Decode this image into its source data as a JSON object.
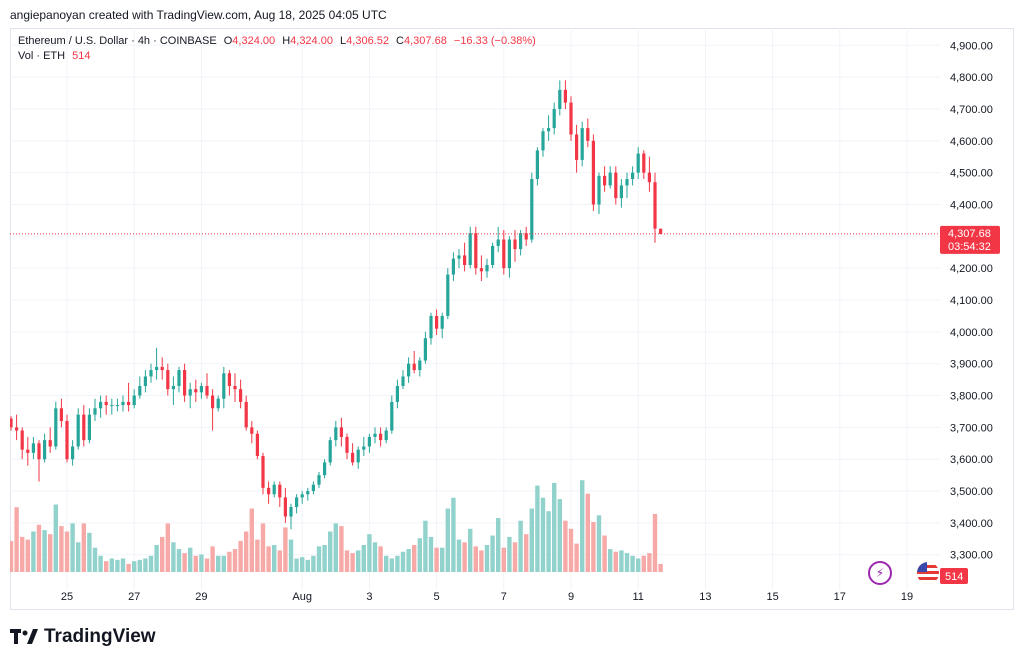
{
  "header": {
    "credit": "angiepanoyan created with TradingView.com, Aug 18, 2025 04:05 UTC"
  },
  "legend": {
    "symbol": "Ethereum / U.S. Dollar · 4h · COINBASE",
    "o_label": "O",
    "o_value": "4,324.00",
    "h_label": "H",
    "h_value": "4,324.00",
    "l_label": "L",
    "l_value": "4,306.52",
    "c_label": "C",
    "c_value": "4,307.68",
    "change": "−16.33 (−0.38%)",
    "vol_label": "Vol · ETH",
    "vol_value": "514"
  },
  "price_tag": {
    "price": "4,307.68",
    "countdown": "03:54:32"
  },
  "volume_tag": "514",
  "brand": {
    "logo_text": "TradingView"
  },
  "colors": {
    "up": "#26a69a",
    "down": "#f23645",
    "up_vol": "#92d2cc",
    "down_vol": "#f7a9a7",
    "grid": "#f0f3fa"
  },
  "icons": {
    "lightning": "lightning-icon",
    "flag": "us-flag-icon",
    "logo": "tradingview-logo-icon"
  },
  "chart_data": {
    "type": "candlestick",
    "title": "Ethereum / U.S. Dollar · 4h · COINBASE",
    "ylim": [
      3240,
      4960
    ],
    "y_ticks": [
      3300,
      3400,
      3500,
      3600,
      3700,
      3800,
      3900,
      4000,
      4100,
      4200,
      4300,
      4400,
      4500,
      4600,
      4700,
      4800,
      4900
    ],
    "y_tick_labels": [
      "3,300.00",
      "3,400.00",
      "3,500.00",
      "3,600.00",
      "3,700.00",
      "3,800.00",
      "3,900.00",
      "4,000.00",
      "4,100.00",
      "4,200.00",
      "4,300.00",
      "4,400.00",
      "4,500.00",
      "4,600.00",
      "4,700.00",
      "4,800.00",
      "4,900.00"
    ],
    "x_ticks": [
      {
        "label": "25",
        "i": 10
      },
      {
        "label": "27",
        "i": 22
      },
      {
        "label": "29",
        "i": 34
      },
      {
        "label": "Aug",
        "i": 52
      },
      {
        "label": "3",
        "i": 64
      },
      {
        "label": "5",
        "i": 76
      },
      {
        "label": "7",
        "i": 88
      },
      {
        "label": "9",
        "i": 100
      },
      {
        "label": "11",
        "i": 112
      },
      {
        "label": "13",
        "i": 124
      },
      {
        "label": "15",
        "i": 136
      },
      {
        "label": "17",
        "i": 148
      },
      {
        "label": "19",
        "i": 160
      }
    ],
    "last_price": 4307.68,
    "candles": [
      [
        3728,
        3735,
        3690,
        3700,
        0.23
      ],
      [
        3700,
        3740,
        3660,
        3690,
        0.48
      ],
      [
        3690,
        3700,
        3600,
        3630,
        0.26
      ],
      [
        3630,
        3670,
        3580,
        3620,
        0.24
      ],
      [
        3620,
        3670,
        3600,
        3650,
        0.3
      ],
      [
        3650,
        3660,
        3530,
        3600,
        0.35
      ],
      [
        3600,
        3680,
        3590,
        3660,
        0.31
      ],
      [
        3660,
        3700,
        3620,
        3640,
        0.28
      ],
      [
        3640,
        3780,
        3630,
        3760,
        0.5
      ],
      [
        3760,
        3790,
        3700,
        3720,
        0.34
      ],
      [
        3720,
        3740,
        3590,
        3600,
        0.3
      ],
      [
        3600,
        3660,
        3580,
        3640,
        0.36
      ],
      [
        3640,
        3760,
        3630,
        3740,
        0.22
      ],
      [
        3740,
        3770,
        3640,
        3660,
        0.36
      ],
      [
        3660,
        3760,
        3650,
        3740,
        0.29
      ],
      [
        3740,
        3790,
        3720,
        3760,
        0.18
      ],
      [
        3760,
        3800,
        3730,
        3780,
        0.12
      ],
      [
        3780,
        3800,
        3740,
        3770,
        0.08
      ],
      [
        3770,
        3790,
        3740,
        3770,
        0.1
      ],
      [
        3770,
        3790,
        3750,
        3770,
        0.09
      ],
      [
        3770,
        3800,
        3750,
        3780,
        0.1
      ],
      [
        3780,
        3840,
        3750,
        3770,
        0.06
      ],
      [
        3770,
        3820,
        3760,
        3800,
        0.08
      ],
      [
        3800,
        3860,
        3790,
        3830,
        0.09
      ],
      [
        3830,
        3880,
        3810,
        3860,
        0.1
      ],
      [
        3860,
        3900,
        3840,
        3880,
        0.12
      ],
      [
        3880,
        3950,
        3850,
        3890,
        0.2
      ],
      [
        3890,
        3920,
        3850,
        3880,
        0.26
      ],
      [
        3880,
        3900,
        3800,
        3820,
        0.36
      ],
      [
        3820,
        3860,
        3770,
        3830,
        0.22
      ],
      [
        3830,
        3890,
        3810,
        3880,
        0.17
      ],
      [
        3880,
        3900,
        3780,
        3800,
        0.14
      ],
      [
        3800,
        3840,
        3760,
        3820,
        0.18
      ],
      [
        3820,
        3850,
        3780,
        3810,
        0.12
      ],
      [
        3810,
        3840,
        3790,
        3830,
        0.13
      ],
      [
        3830,
        3870,
        3790,
        3800,
        0.1
      ],
      [
        3800,
        3820,
        3690,
        3760,
        0.19
      ],
      [
        3760,
        3800,
        3750,
        3790,
        0.12
      ],
      [
        3790,
        3890,
        3760,
        3870,
        0.12
      ],
      [
        3870,
        3880,
        3800,
        3830,
        0.15
      ],
      [
        3830,
        3870,
        3780,
        3820,
        0.17
      ],
      [
        3820,
        3850,
        3760,
        3780,
        0.23
      ],
      [
        3780,
        3800,
        3690,
        3700,
        0.3
      ],
      [
        3700,
        3720,
        3650,
        3680,
        0.47
      ],
      [
        3680,
        3690,
        3600,
        3610,
        0.24
      ],
      [
        3610,
        3620,
        3490,
        3510,
        0.36
      ],
      [
        3510,
        3530,
        3460,
        3490,
        0.19
      ],
      [
        3490,
        3530,
        3480,
        3520,
        0.2
      ],
      [
        3520,
        3530,
        3450,
        3480,
        0.16
      ],
      [
        3480,
        3510,
        3400,
        3420,
        0.33
      ],
      [
        3420,
        3460,
        3380,
        3450,
        0.24
      ],
      [
        3450,
        3490,
        3430,
        3480,
        0.1
      ],
      [
        3480,
        3500,
        3460,
        3490,
        0.11
      ],
      [
        3490,
        3510,
        3470,
        3500,
        0.09
      ],
      [
        3500,
        3530,
        3490,
        3520,
        0.12
      ],
      [
        3520,
        3560,
        3510,
        3550,
        0.19
      ],
      [
        3550,
        3600,
        3540,
        3590,
        0.2
      ],
      [
        3590,
        3670,
        3580,
        3660,
        0.3
      ],
      [
        3660,
        3720,
        3640,
        3700,
        0.36
      ],
      [
        3700,
        3730,
        3640,
        3670,
        0.34
      ],
      [
        3670,
        3680,
        3600,
        3620,
        0.16
      ],
      [
        3620,
        3650,
        3580,
        3590,
        0.14
      ],
      [
        3590,
        3640,
        3570,
        3630,
        0.16
      ],
      [
        3630,
        3670,
        3610,
        3640,
        0.2
      ],
      [
        3640,
        3680,
        3620,
        3670,
        0.28
      ],
      [
        3670,
        3700,
        3650,
        3680,
        0.22
      ],
      [
        3680,
        3700,
        3640,
        3660,
        0.19
      ],
      [
        3660,
        3700,
        3650,
        3690,
        0.12
      ],
      [
        3690,
        3800,
        3680,
        3780,
        0.1
      ],
      [
        3780,
        3850,
        3760,
        3830,
        0.12
      ],
      [
        3830,
        3880,
        3820,
        3860,
        0.15
      ],
      [
        3860,
        3920,
        3840,
        3900,
        0.17
      ],
      [
        3900,
        3940,
        3870,
        3880,
        0.2
      ],
      [
        3880,
        3920,
        3860,
        3910,
        0.25
      ],
      [
        3910,
        4000,
        3900,
        3980,
        0.38
      ],
      [
        3980,
        4060,
        3960,
        4050,
        0.26
      ],
      [
        4050,
        4070,
        3990,
        4010,
        0.18
      ],
      [
        4010,
        4060,
        3980,
        4050,
        0.18
      ],
      [
        4050,
        4200,
        4040,
        4180,
        0.47
      ],
      [
        4180,
        4250,
        4160,
        4230,
        0.55
      ],
      [
        4230,
        4260,
        4200,
        4240,
        0.24
      ],
      [
        4240,
        4280,
        4190,
        4210,
        0.22
      ],
      [
        4210,
        4330,
        4200,
        4310,
        0.32
      ],
      [
        4310,
        4330,
        4180,
        4200,
        0.19
      ],
      [
        4200,
        4240,
        4160,
        4190,
        0.16
      ],
      [
        4190,
        4230,
        4170,
        4210,
        0.2
      ],
      [
        4210,
        4280,
        4200,
        4270,
        0.27
      ],
      [
        4270,
        4330,
        4250,
        4290,
        0.4
      ],
      [
        4290,
        4320,
        4180,
        4200,
        0.18
      ],
      [
        4200,
        4300,
        4170,
        4290,
        0.26
      ],
      [
        4290,
        4320,
        4220,
        4260,
        0.22
      ],
      [
        4260,
        4320,
        4240,
        4310,
        0.38
      ],
      [
        4310,
        4330,
        4270,
        4290,
        0.28
      ],
      [
        4290,
        4500,
        4280,
        4480,
        0.47
      ],
      [
        4480,
        4580,
        4460,
        4570,
        0.64
      ],
      [
        4570,
        4640,
        4550,
        4630,
        0.55
      ],
      [
        4630,
        4680,
        4600,
        4640,
        0.45
      ],
      [
        4640,
        4720,
        4620,
        4700,
        0.66
      ],
      [
        4700,
        4790,
        4680,
        4760,
        0.54
      ],
      [
        4760,
        4790,
        4700,
        4720,
        0.38
      ],
      [
        4720,
        4740,
        4600,
        4620,
        0.32
      ],
      [
        4620,
        4650,
        4500,
        4540,
        0.21
      ],
      [
        4540,
        4660,
        4520,
        4640,
        0.68
      ],
      [
        4640,
        4670,
        4580,
        4600,
        0.58
      ],
      [
        4600,
        4620,
        4380,
        4400,
        0.37
      ],
      [
        4400,
        4500,
        4370,
        4490,
        0.42
      ],
      [
        4490,
        4520,
        4440,
        4460,
        0.27
      ],
      [
        4460,
        4520,
        4450,
        4500,
        0.17
      ],
      [
        4500,
        4520,
        4400,
        4420,
        0.15
      ],
      [
        4420,
        4480,
        4390,
        4460,
        0.16
      ],
      [
        4460,
        4500,
        4420,
        4480,
        0.14
      ],
      [
        4480,
        4520,
        4460,
        4500,
        0.12
      ],
      [
        4500,
        4580,
        4480,
        4560,
        0.1
      ],
      [
        4560,
        4570,
        4480,
        4500,
        0.12
      ],
      [
        4500,
        4550,
        4440,
        4470,
        0.14
      ],
      [
        4470,
        4500,
        4280,
        4324,
        0.43
      ],
      [
        4324,
        4324,
        4306.52,
        4307.68,
        0.06
      ]
    ]
  }
}
